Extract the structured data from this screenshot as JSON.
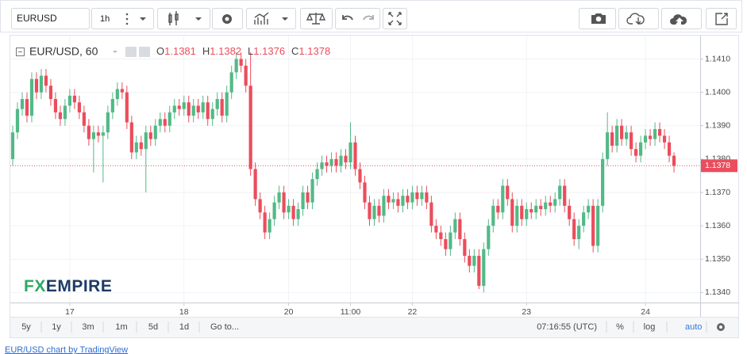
{
  "toolbar": {
    "symbol": "EURUSD",
    "interval": "1h"
  },
  "chart_data": {
    "type": "candlestick",
    "title": "EUR/USD, 60",
    "ohlc_labels": [
      "O",
      "H",
      "L",
      "C"
    ],
    "categories": [
      null,
      null,
      null,
      null,
      null,
      null,
      null,
      null,
      null,
      null,
      null,
      null,
      "17",
      null,
      null,
      null,
      null,
      null,
      null,
      null,
      null,
      null,
      null,
      null,
      null,
      null,
      null,
      null,
      null,
      null,
      null,
      null,
      null,
      null,
      null,
      null,
      "18",
      null,
      null,
      null,
      null,
      null,
      null,
      null,
      null,
      null,
      null,
      null,
      null,
      null,
      null,
      null,
      null,
      null,
      null,
      null,
      null,
      null,
      "20",
      null,
      null,
      null,
      null,
      null,
      null,
      null,
      null,
      null,
      null,
      null,
      null,
      "11:00",
      null,
      null,
      null,
      null,
      null,
      null,
      null,
      null,
      null,
      null,
      null,
      null,
      "22",
      null,
      null,
      null,
      null,
      null,
      null,
      null,
      null,
      null,
      null,
      null,
      null,
      null,
      null,
      null,
      null,
      null,
      null,
      null,
      null,
      null,
      null,
      null,
      "23",
      null,
      null,
      null,
      null,
      null,
      null,
      null,
      null,
      null,
      null,
      null,
      null,
      null,
      null,
      null,
      null,
      null,
      null,
      null,
      null,
      null,
      null,
      null,
      null,
      "24",
      null,
      null,
      null,
      null,
      null,
      null
    ],
    "open": [
      1.138,
      1.1388,
      1.1395,
      1.1398,
      1.1393,
      1.1404,
      1.14,
      1.1405,
      1.1402,
      1.1398,
      1.1394,
      1.1392,
      1.1396,
      1.1399,
      1.1397,
      1.1394,
      1.139,
      1.1386,
      1.1388,
      1.1387,
      1.1388,
      1.1394,
      1.1398,
      1.1401,
      1.14,
      1.1391,
      1.1382,
      1.1385,
      1.1383,
      1.1388,
      1.1386,
      1.139,
      1.1392,
      1.139,
      1.1394,
      1.1396,
      1.1395,
      1.1397,
      1.1393,
      1.1396,
      1.1394,
      1.1397,
      1.1392,
      1.1395,
      1.1398,
      1.1393,
      1.14,
      1.1406,
      1.141,
      1.1408,
      1.1402,
      1.1377,
      1.1368,
      1.1364,
      1.1358,
      1.1362,
      1.1367,
      1.137,
      1.1364,
      1.1366,
      1.1362,
      1.1365,
      1.137,
      1.1367,
      1.1374,
      1.1377,
      1.1379,
      1.1378,
      1.138,
      1.1378,
      1.1381,
      1.1379,
      1.1385,
      1.1377,
      1.1373,
      1.1367,
      1.1362,
      1.1366,
      1.1363,
      1.1369,
      1.1367,
      1.1368,
      1.1366,
      1.1369,
      1.1367,
      1.137,
      1.1368,
      1.137,
      1.1367,
      1.136,
      1.1358,
      1.1356,
      1.1353,
      1.1358,
      1.1362,
      1.1356,
      1.1351,
      1.1348,
      1.1351,
      1.1342,
      1.1353,
      1.136,
      1.1366,
      1.1364,
      1.1372,
      1.1368,
      1.136,
      1.1366,
      1.1362,
      1.1365,
      1.1364,
      1.1366,
      1.1365,
      1.1367,
      1.1366,
      1.1368,
      1.1372,
      1.1366,
      1.1362,
      1.1356,
      1.136,
      1.1364,
      1.1366,
      1.1354,
      1.1366,
      1.138,
      1.1388,
      1.1384,
      1.139,
      1.1386,
      1.1388,
      1.1383,
      1.1381,
      1.1385,
      1.1387,
      1.1386,
      1.1389,
      1.1387,
      1.1385,
      1.1381
    ],
    "high": [
      1.139,
      1.1397,
      1.14,
      1.14,
      1.1406,
      1.1406,
      1.1407,
      1.1407,
      1.1404,
      1.14,
      1.1396,
      1.1398,
      1.1401,
      1.1401,
      1.1399,
      1.1396,
      1.1392,
      1.139,
      1.139,
      1.139,
      1.1396,
      1.14,
      1.1403,
      1.1403,
      1.1402,
      1.1393,
      1.1387,
      1.1387,
      1.139,
      1.139,
      1.1392,
      1.1394,
      1.1394,
      1.1396,
      1.1398,
      1.1398,
      1.1399,
      1.1399,
      1.1398,
      1.1398,
      1.1399,
      1.1399,
      1.1397,
      1.14,
      1.14,
      1.1402,
      1.1408,
      1.1412,
      1.1412,
      1.141,
      1.1412,
      1.1379,
      1.137,
      1.1366,
      1.1364,
      1.1369,
      1.1372,
      1.1372,
      1.1368,
      1.1368,
      1.1367,
      1.1372,
      1.1372,
      1.1376,
      1.1379,
      1.1381,
      1.1381,
      1.1382,
      1.1382,
      1.1383,
      1.1383,
      1.1391,
      1.1387,
      1.1379,
      1.1375,
      1.1369,
      1.1368,
      1.1368,
      1.1371,
      1.1371,
      1.137,
      1.137,
      1.1371,
      1.1371,
      1.1372,
      1.1372,
      1.1372,
      1.1372,
      1.1369,
      1.1362,
      1.136,
      1.1358,
      1.136,
      1.1364,
      1.1364,
      1.1358,
      1.1353,
      1.1353,
      1.1353,
      1.1355,
      1.1362,
      1.1368,
      1.1368,
      1.1374,
      1.1374,
      1.137,
      1.1368,
      1.1368,
      1.1367,
      1.1367,
      1.1368,
      1.1368,
      1.1369,
      1.1369,
      1.137,
      1.1374,
      1.1374,
      1.1368,
      1.1364,
      1.1362,
      1.1366,
      1.1368,
      1.1368,
      1.1368,
      1.1382,
      1.1394,
      1.139,
      1.1392,
      1.1392,
      1.139,
      1.139,
      1.1385,
      1.1387,
      1.1389,
      1.1389,
      1.1391,
      1.1391,
      1.1389,
      1.1387,
      1.1382
    ],
    "low": [
      1.1378,
      1.1386,
      1.1393,
      1.1391,
      1.1391,
      1.1398,
      1.1398,
      1.14,
      1.1396,
      1.1392,
      1.139,
      1.139,
      1.1394,
      1.1395,
      1.1392,
      1.1388,
      1.1384,
      1.1376,
      1.1385,
      1.1373,
      1.1386,
      1.1392,
      1.1396,
      1.1398,
      1.1389,
      1.138,
      1.138,
      1.1381,
      1.137,
      1.1384,
      1.1384,
      1.1388,
      1.1388,
      1.1388,
      1.1392,
      1.1393,
      1.1393,
      1.1391,
      1.1391,
      1.1392,
      1.1392,
      1.139,
      1.139,
      1.1393,
      1.1391,
      1.1391,
      1.1398,
      1.1404,
      1.1406,
      1.14,
      1.1375,
      1.1366,
      1.1362,
      1.1356,
      1.1356,
      1.136,
      1.1365,
      1.1362,
      1.1362,
      1.136,
      1.136,
      1.1363,
      1.1365,
      1.1365,
      1.1372,
      1.1375,
      1.1376,
      1.1376,
      1.1376,
      1.1376,
      1.1377,
      1.1377,
      1.1375,
      1.1371,
      1.1365,
      1.136,
      1.136,
      1.1361,
      1.1361,
      1.1365,
      1.1365,
      1.1364,
      1.1364,
      1.1365,
      1.1365,
      1.1366,
      1.1366,
      1.1365,
      1.1358,
      1.1356,
      1.1354,
      1.1351,
      1.1351,
      1.1356,
      1.1354,
      1.1349,
      1.1346,
      1.1346,
      1.1341,
      1.134,
      1.1351,
      1.1358,
      1.1362,
      1.1362,
      1.1366,
      1.1358,
      1.1358,
      1.136,
      1.136,
      1.1362,
      1.1362,
      1.1363,
      1.1363,
      1.1364,
      1.1364,
      1.1366,
      1.1364,
      1.136,
      1.1354,
      1.1353,
      1.1358,
      1.1362,
      1.1352,
      1.1352,
      1.1364,
      1.1378,
      1.1382,
      1.1382,
      1.1384,
      1.1384,
      1.1381,
      1.1379,
      1.1379,
      1.1383,
      1.1384,
      1.1384,
      1.1385,
      1.1383,
      1.1379,
      1.1376
    ],
    "close": [
      1.1388,
      1.1395,
      1.1398,
      1.1393,
      1.1404,
      1.14,
      1.1405,
      1.1402,
      1.1398,
      1.1394,
      1.1392,
      1.1396,
      1.1399,
      1.1397,
      1.1394,
      1.139,
      1.1386,
      1.1388,
      1.1387,
      1.1388,
      1.1394,
      1.1398,
      1.1401,
      1.14,
      1.1391,
      1.1382,
      1.1385,
      1.1383,
      1.1388,
      1.1386,
      1.139,
      1.1392,
      1.139,
      1.1394,
      1.1396,
      1.1395,
      1.1397,
      1.1393,
      1.1396,
      1.1394,
      1.1397,
      1.1392,
      1.1395,
      1.1398,
      1.1393,
      1.14,
      1.1406,
      1.141,
      1.1408,
      1.1402,
      1.1377,
      1.1368,
      1.1364,
      1.1358,
      1.1362,
      1.1367,
      1.137,
      1.1364,
      1.1366,
      1.1362,
      1.1365,
      1.137,
      1.1367,
      1.1374,
      1.1377,
      1.1379,
      1.1378,
      1.138,
      1.1378,
      1.1381,
      1.1379,
      1.1385,
      1.1377,
      1.1373,
      1.1367,
      1.1362,
      1.1366,
      1.1363,
      1.1369,
      1.1367,
      1.1368,
      1.1366,
      1.1369,
      1.1367,
      1.137,
      1.1368,
      1.137,
      1.1367,
      1.136,
      1.1358,
      1.1356,
      1.1353,
      1.1358,
      1.1362,
      1.1356,
      1.1351,
      1.1348,
      1.1351,
      1.1342,
      1.1353,
      1.136,
      1.1366,
      1.1364,
      1.1372,
      1.1368,
      1.136,
      1.1366,
      1.1362,
      1.1365,
      1.1364,
      1.1366,
      1.1365,
      1.1367,
      1.1366,
      1.1368,
      1.1372,
      1.1366,
      1.1362,
      1.1356,
      1.136,
      1.1364,
      1.1366,
      1.1354,
      1.1366,
      1.138,
      1.1388,
      1.1384,
      1.139,
      1.1386,
      1.1388,
      1.1383,
      1.1381,
      1.1385,
      1.1387,
      1.1386,
      1.1389,
      1.1387,
      1.1385,
      1.1381,
      1.1378
    ],
    "up_color": "#53b987",
    "down_color": "#eb4d5c",
    "ylim": [
      1.1337,
      1.1417
    ],
    "yticks": [
      {
        "value": 1.134,
        "label": "1.1340"
      },
      {
        "value": 1.135,
        "label": "1.1350"
      },
      {
        "value": 1.136,
        "label": "1.1360"
      },
      {
        "value": 1.137,
        "label": "1.1370"
      },
      {
        "value": 1.138,
        "label": "1.1380"
      },
      {
        "value": 1.139,
        "label": "1.1390"
      },
      {
        "value": 1.14,
        "label": "1.1400"
      },
      {
        "value": 1.141,
        "label": "1.1410"
      }
    ],
    "grid": true
  },
  "watermark": {
    "prefix": "FX",
    "name": "EMPIRE"
  },
  "bottom_bar": {
    "ranges": [
      "5y",
      "1y",
      "3m",
      "1m",
      "5d",
      "1d"
    ],
    "goto": "Go to...",
    "time": "07:16:55 (UTC)",
    "options": [
      "%",
      "log",
      "auto"
    ]
  },
  "footer": "EUR/USD chart by TradingView"
}
